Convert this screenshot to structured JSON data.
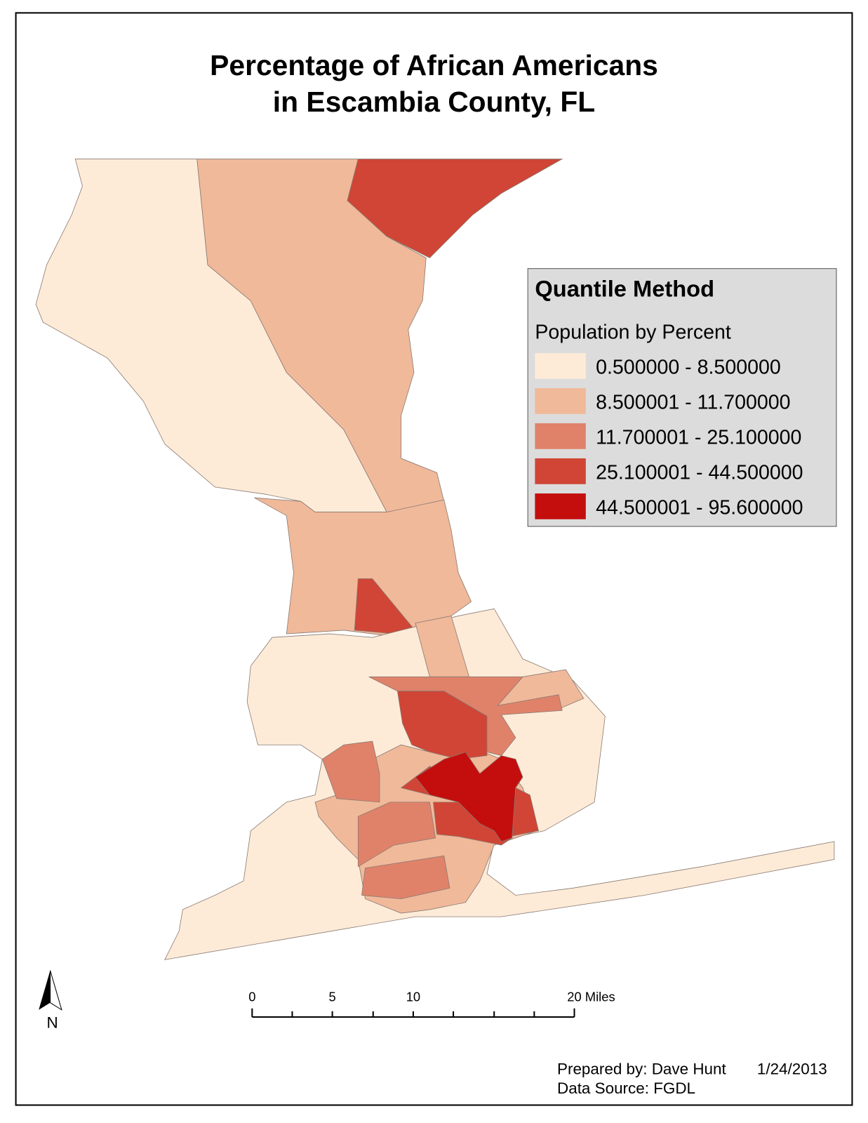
{
  "title": [
    "Percentage of African Americans",
    "in Escambia County, FL"
  ],
  "legend": {
    "title": "Quantile Method",
    "subtitle": "Population by Percent",
    "classes": [
      {
        "label": "0.500000 - 8.500000",
        "color": "#fdebd8"
      },
      {
        "label": "8.500001 - 11.700000",
        "color": "#f0b99a"
      },
      {
        "label": "11.700001 - 25.100000",
        "color": "#e0826a"
      },
      {
        "label": "25.100001 - 44.500000",
        "color": "#d04535"
      },
      {
        "label": "44.500001 - 95.600000",
        "color": "#c40e0e"
      }
    ]
  },
  "scale_bar": {
    "labels": [
      "0",
      "5",
      "10",
      "20 Miles"
    ]
  },
  "north_arrow": "N",
  "credits": {
    "prepared_by": "Prepared by: Dave Hunt",
    "date": "1/24/2013",
    "source": "Data Source: FGDL"
  }
}
